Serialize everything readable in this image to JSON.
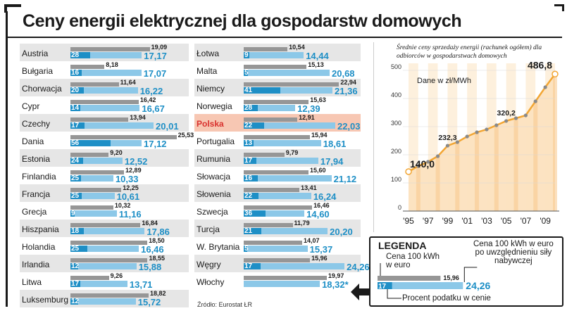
{
  "title": "Ceny energii elektrycznej dla gospodarstw domowych",
  "source": "Źródło: Eurostat   ŁR",
  "chart_data": [
    {
      "type": "bar",
      "name": "country-prices",
      "series": [
        {
          "name": "Cena 100 kWh w euro",
          "key": "gross"
        },
        {
          "name": "Cena 100 kWh w euro po uwzględnieniu siły nabywczej",
          "key": "ppp"
        },
        {
          "name": "Procent podatku w cenie",
          "key": "tax"
        }
      ],
      "countries": [
        {
          "name": "Austria",
          "gross": "19,09",
          "ppp": "17,17",
          "tax": "28"
        },
        {
          "name": "Bułgaria",
          "gross": "8,18",
          "ppp": "17,07",
          "tax": "16"
        },
        {
          "name": "Chorwacja",
          "gross": "11,64",
          "ppp": "16,22",
          "tax": "20"
        },
        {
          "name": "Cypr",
          "gross": "16,42",
          "ppp": "16,67",
          "tax": "14"
        },
        {
          "name": "Czechy",
          "gross": "13,94",
          "ppp": "20,01",
          "tax": "17"
        },
        {
          "name": "Dania",
          "gross": "25,53",
          "ppp": "17,12",
          "tax": "56"
        },
        {
          "name": "Estonia",
          "gross": "9,20",
          "ppp": "12,52",
          "tax": "24"
        },
        {
          "name": "Finlandia",
          "gross": "12,89",
          "ppp": "10,33",
          "tax": "25"
        },
        {
          "name": "Francja",
          "gross": "12,25",
          "ppp": "10,61",
          "tax": "25"
        },
        {
          "name": "Grecja",
          "gross": "10,32",
          "ppp": "11,16",
          "tax": "9"
        },
        {
          "name": "Hiszpania",
          "gross": "16,84",
          "ppp": "17,86",
          "tax": "18"
        },
        {
          "name": "Holandia",
          "gross": "18,50",
          "ppp": "16,46",
          "tax": "25"
        },
        {
          "name": "Irlandia",
          "gross": "18,55",
          "ppp": "15,88",
          "tax": "12"
        },
        {
          "name": "Litwa",
          "gross": "9,26",
          "ppp": "13,71",
          "tax": "17"
        },
        {
          "name": "Luksemburg",
          "gross": "18,82",
          "ppp": "15,72",
          "tax": "12"
        },
        {
          "name": "Łotwa",
          "gross": "10,54",
          "ppp": "14,44",
          "tax": "9"
        },
        {
          "name": "Malta",
          "gross": "15,13",
          "ppp": "20,68",
          "tax": "5"
        },
        {
          "name": "Niemcy",
          "gross": "22,94",
          "ppp": "21,36",
          "tax": "41"
        },
        {
          "name": "Norwegia",
          "gross": "15,63",
          "ppp": "12,39",
          "tax": "28"
        },
        {
          "name": "Polska",
          "gross": "12,91",
          "ppp": "22,03",
          "tax": "22",
          "highlight": true
        },
        {
          "name": "Portugalia",
          "gross": "15,94",
          "ppp": "18,61",
          "tax": "13"
        },
        {
          "name": "Rumunia",
          "gross": "9,79",
          "ppp": "17,94",
          "tax": "17"
        },
        {
          "name": "Słowacja",
          "gross": "15,60",
          "ppp": "21,12",
          "tax": "16"
        },
        {
          "name": "Słowenia",
          "gross": "13,41",
          "ppp": "16,24",
          "tax": "22"
        },
        {
          "name": "Szwecja",
          "gross": "16,46",
          "ppp": "14,60",
          "tax": "36"
        },
        {
          "name": "Turcja",
          "gross": "11,79",
          "ppp": "20,20",
          "tax": "21"
        },
        {
          "name": "W. Brytania",
          "gross": "14,07",
          "ppp": "15,37",
          "tax": "5"
        },
        {
          "name": "Węgry",
          "gross": "15,96",
          "ppp": "24,26",
          "tax": "17"
        },
        {
          "name": "Włochy",
          "gross": "19,97",
          "ppp": "18,32*",
          "tax": ""
        }
      ]
    },
    {
      "type": "area",
      "name": "poland-trend",
      "title": "Średnie ceny sprzedaży energii (rachunek ogółem) dla odbiorców w gospodarstwach domowych",
      "unit_label": "Dane w zł/MWh",
      "ylim": [
        0,
        500
      ],
      "yticks": [
        "0",
        "100",
        "200",
        "300",
        "400",
        "500"
      ],
      "xticks": [
        "'95",
        "'97",
        "'99",
        "'01",
        "'03",
        "'05",
        "'07",
        "'09"
      ],
      "x": [
        1995,
        1996,
        1997,
        1998,
        1999,
        2000,
        2001,
        2002,
        2003,
        2004,
        2005,
        2006,
        2007,
        2008,
        2009,
        2010
      ],
      "values": [
        140.0,
        160,
        175,
        195,
        232.3,
        245,
        265,
        280,
        290,
        305,
        320.2,
        330,
        340,
        390,
        440,
        486.8
      ],
      "labels": [
        {
          "year": 1995,
          "text": "140,0"
        },
        {
          "year": 1999,
          "text": "232,3"
        },
        {
          "year": 2005,
          "text": "320,2"
        },
        {
          "year": 2010,
          "text": "486,8"
        }
      ],
      "colors": {
        "fill": "#fce2bf",
        "stripe": "#f7c98c",
        "line": "#f2a634",
        "point": "#8a8a8a"
      }
    }
  ],
  "legend": {
    "title": "LEGENDA",
    "gross_label": "Cena 100 kWh\nw euro",
    "ppp_label": "Cena 100 kWh w euro\npo uwzględnieniu siły\nnabywczej",
    "tax_label": "Procent podatku w cenie",
    "sample_gross": "15,96",
    "sample_ppp": "24,26",
    "sample_tax": "17"
  }
}
